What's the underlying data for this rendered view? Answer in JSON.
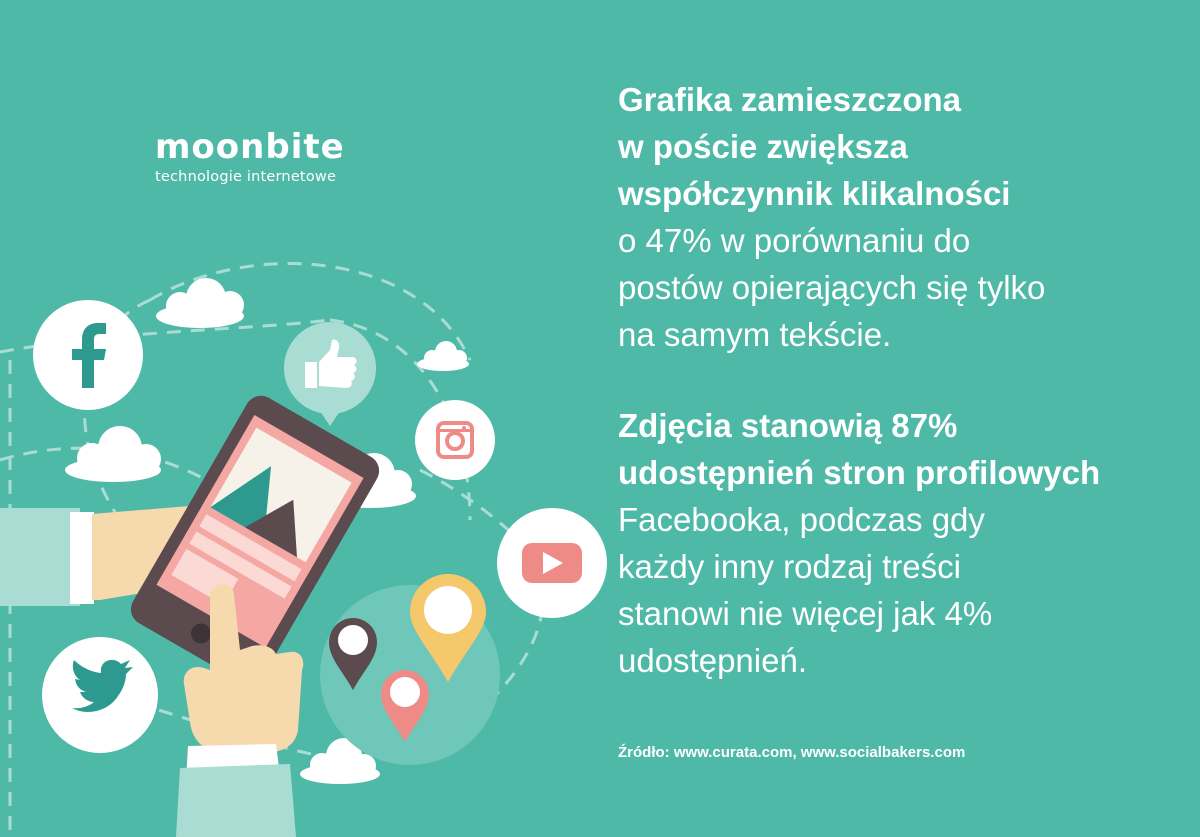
{
  "logo": {
    "name": "moonbite",
    "tagline": "technologie internetowe"
  },
  "paragraph1": {
    "bold_lines": [
      "Grafika zamieszczona",
      "w poście zwiększa",
      "współczynnik klikalności"
    ],
    "lines": [
      "o 47% w porównaniu do",
      "postów opierających się tylko",
      "na samym tekście."
    ]
  },
  "paragraph2": {
    "bold_lines": [
      "Zdjęcia stanowią 87%",
      "udostępnień stron profilowych"
    ],
    "lines": [
      "Facebooka, podczas gdy",
      "każdy inny rodzaj treści",
      "stanowi nie więcej jak 4%",
      "udostępnień."
    ]
  },
  "source": "Źródło: www.curata.com, www.socialbakers.com",
  "colors": {
    "background": "#4fb9a8",
    "teal_dark": "#2e9a8f",
    "pink": "#ef8b87",
    "yellow": "#f6c86c",
    "phone": "#5b4a4e",
    "skin": "#f7d9ae"
  },
  "icons": [
    "facebook-icon",
    "thumbs-up-icon",
    "instagram-icon",
    "youtube-icon",
    "twitter-icon",
    "map-pin-icon",
    "cloud-icon",
    "smartphone-icon",
    "hand-icon"
  ]
}
